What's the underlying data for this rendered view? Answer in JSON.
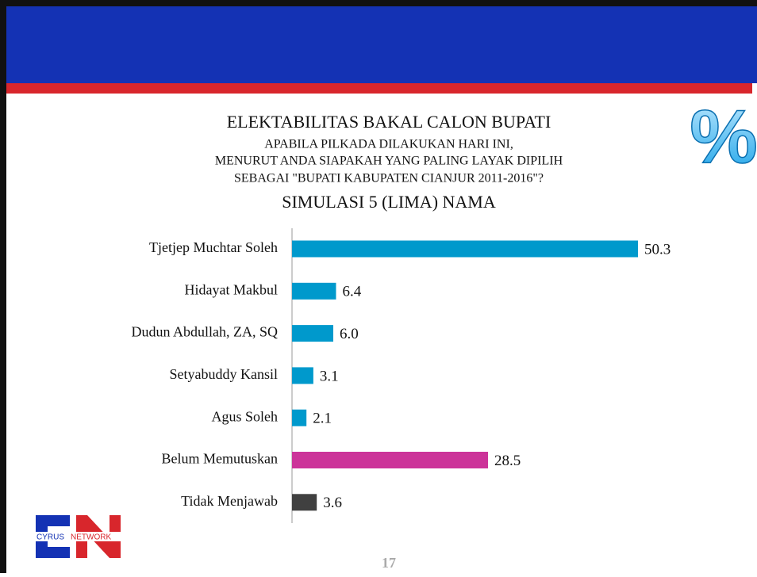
{
  "chart_data": {
    "type": "bar",
    "orientation": "horizontal",
    "title": "ELEKTABILITAS BAKAL CALON BUPATI",
    "subtitle": [
      "APABILA PILKADA DILAKUKAN HARI INI,",
      "MENURUT ANDA SIAPAKAH YANG PALING LAYAK DIPILIH",
      "SEBAGAI \"BUPATI KABUPATEN CIANJUR 2011-2016\"?"
    ],
    "subtitle2": "SIMULASI 5 (LIMA) NAMA",
    "categories": [
      "Tjetjep Muchtar Soleh",
      "Hidayat Makbul",
      "Dudun Abdullah, ZA, SQ",
      "Setyabuddy Kansil",
      "Agus Soleh",
      "Belum Memutuskan",
      "Tidak Menjawab"
    ],
    "values": [
      50.3,
      6.4,
      6.0,
      3.1,
      2.1,
      28.5,
      3.6
    ],
    "value_labels": [
      "50.3",
      "6.4",
      "6.0",
      "3.1",
      "2.1",
      "28.5",
      "3.6"
    ],
    "colors": [
      "#0099cc",
      "#0099cc",
      "#0099cc",
      "#0099cc",
      "#0099cc",
      "#cc3399",
      "#404040"
    ]
  },
  "slide": {
    "percent_sign": "%",
    "logo_text": [
      "CYRUS",
      "NETWORK"
    ],
    "page_number": "17"
  }
}
